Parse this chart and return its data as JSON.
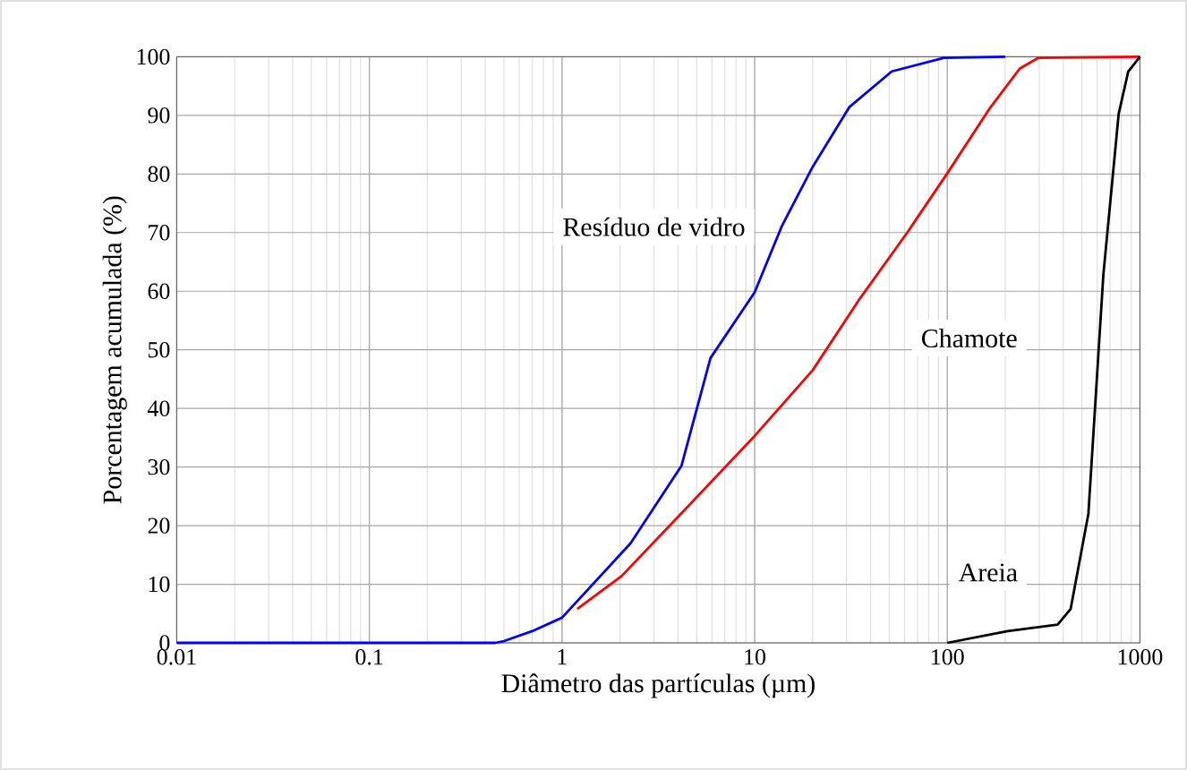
{
  "chart_data": {
    "type": "line",
    "xlabel": "Diâmetro das partículas (µm)",
    "ylabel": "Porcentagem acumulada (%)",
    "log": "x",
    "xlim": [
      0.01,
      1000
    ],
    "ylim": [
      0,
      100
    ],
    "xticks": [
      0.01,
      0.1,
      1,
      10,
      100,
      1000
    ],
    "yticks": [
      0,
      10,
      20,
      30,
      40,
      50,
      60,
      70,
      80,
      90,
      100
    ],
    "grid": true,
    "legend": false,
    "marker": "none",
    "line_style": "solid",
    "series": [
      {
        "name": "Resíduo de vidro",
        "color": "#0000ff",
        "x": [
          0.01,
          0.45,
          0.5,
          0.7,
          1,
          2.27,
          4.17,
          5.9,
          10,
          13.8,
          20,
          31,
          51.5,
          96,
          200
        ],
        "values": [
          0,
          0,
          0.3,
          2,
          4.3,
          17,
          30.2,
          48.6,
          59.8,
          71,
          81.2,
          91.4,
          97.5,
          99.8,
          100
        ]
      },
      {
        "name": "Chamote",
        "color": "#ff0000",
        "x": [
          1.2,
          2.04,
          4.17,
          10,
          20,
          35.3,
          62,
          100,
          167,
          238,
          296,
          1000
        ],
        "values": [
          5.8,
          11.4,
          22.1,
          35.3,
          46.5,
          58.8,
          70,
          80.1,
          91.3,
          98,
          99.8,
          100
        ]
      },
      {
        "name": "Areia",
        "color": "#000000",
        "x": [
          100,
          206,
          374,
          437,
          540,
          646,
          776,
          870,
          1000
        ],
        "values": [
          0,
          2,
          3.1,
          5.8,
          22,
          62.8,
          90.3,
          97.5,
          100
        ]
      }
    ]
  }
}
